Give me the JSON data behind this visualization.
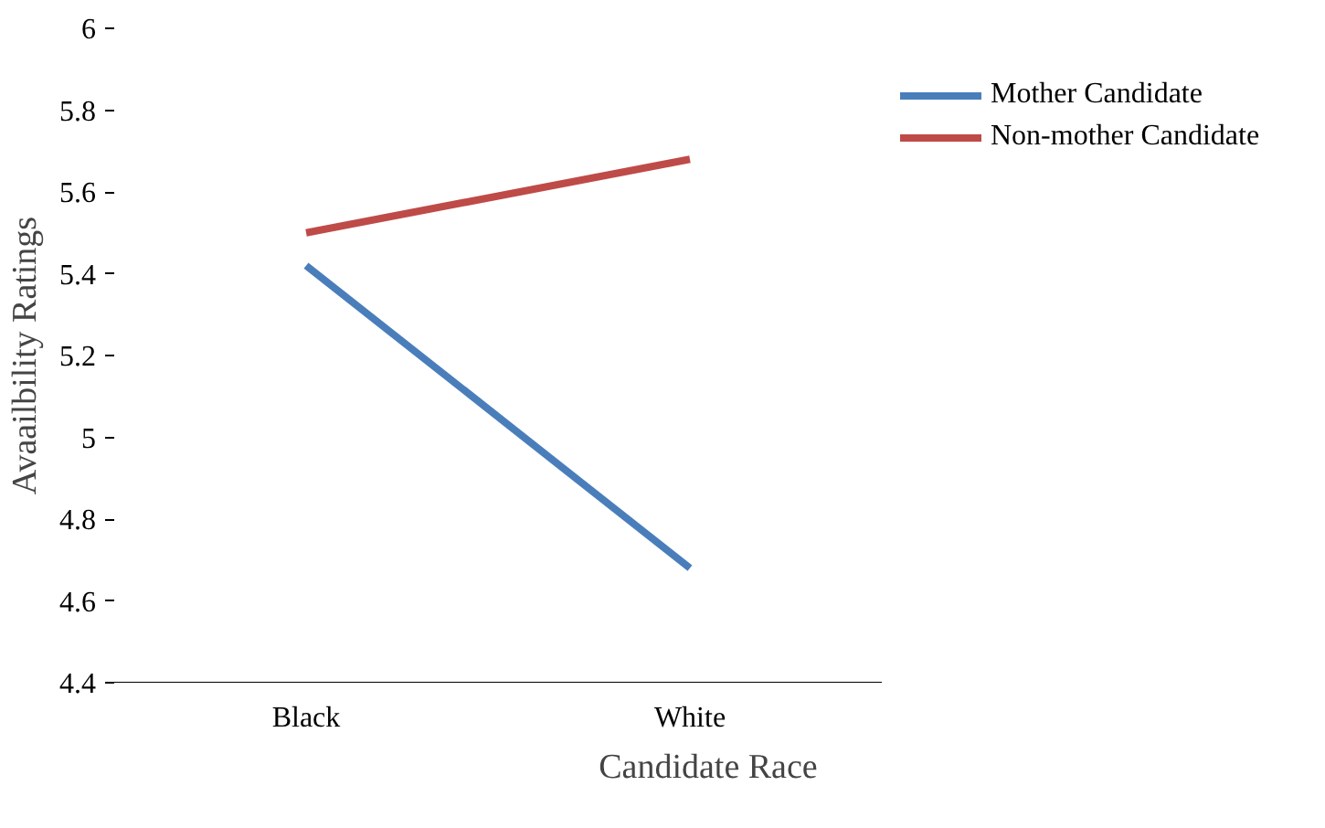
{
  "chart_data": {
    "type": "line",
    "xlabel": "Candidate Race",
    "ylabel": "Avaailbility Ratings",
    "categories": [
      "Black",
      "White"
    ],
    "series": [
      {
        "name": "Mother Candidate",
        "color": "#4a7ebb",
        "values": [
          5.42,
          4.68
        ]
      },
      {
        "name": "Non-mother Candidate",
        "color": "#be4b48",
        "values": [
          5.5,
          5.68
        ]
      }
    ],
    "ylim": [
      4.4,
      6
    ],
    "yticks": [
      4.4,
      4.6,
      4.8,
      5,
      5.2,
      5.4,
      5.6,
      5.8,
      6
    ],
    "grid": false,
    "legend": "top right",
    "marker": "none",
    "line_style": "solid"
  }
}
